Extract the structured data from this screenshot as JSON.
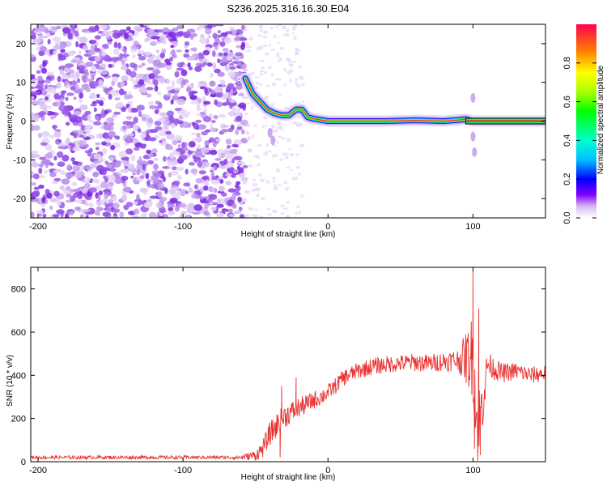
{
  "title": "S236.2025.316.16.30.E04",
  "chart_data": [
    {
      "type": "heatmap",
      "name": "spectrogram",
      "xlabel": "Height of straight line (km)",
      "ylabel": "Frequency (Hz)",
      "xlim": [
        -205,
        150
      ],
      "ylim": [
        -25,
        25
      ],
      "xticks": [
        -200,
        -100,
        0,
        100
      ],
      "yticks": [
        -20,
        -10,
        0,
        10,
        20
      ],
      "colorbar": {
        "label": "Normalized spectral amplitude",
        "range": [
          0,
          1
        ],
        "ticks": [
          0.0,
          0.2,
          0.4,
          0.6,
          0.8
        ]
      },
      "noise_region_x": [
        -205,
        -57
      ],
      "signal_track": {
        "x": [
          -57,
          -52,
          -47,
          -42,
          -37,
          -32,
          -27,
          -22,
          -18,
          -14,
          -10,
          -5,
          0,
          10,
          20,
          40,
          60,
          80,
          90,
          95,
          100,
          150
        ],
        "freq": [
          11,
          7,
          5,
          3,
          2,
          1.5,
          1.5,
          3,
          3,
          1,
          0.6,
          0.3,
          0,
          0,
          0,
          0,
          0.2,
          0,
          0.3,
          0.5,
          0,
          0
        ]
      }
    },
    {
      "type": "line",
      "name": "snr",
      "xlabel": "Height of straight line (km)",
      "ylabel": "SNR (10 * v/v)",
      "xlim": [
        -205,
        150
      ],
      "ylim": [
        0,
        900
      ],
      "xticks": [
        -200,
        -100,
        0,
        100
      ],
      "yticks": [
        0,
        200,
        400,
        600,
        800
      ],
      "series": [
        {
          "name": "SNR",
          "color": "#e8312f",
          "x": [
            -205,
            -190,
            -170,
            -150,
            -130,
            -110,
            -90,
            -70,
            -60,
            -50,
            -45,
            -40,
            -35,
            -30,
            -25,
            -20,
            -15,
            -10,
            -5,
            0,
            5,
            10,
            20,
            30,
            40,
            50,
            60,
            70,
            80,
            90,
            95,
            100,
            103,
            106,
            110,
            120,
            130,
            140,
            150
          ],
          "values": [
            20,
            20,
            20,
            20,
            20,
            20,
            20,
            20,
            20,
            30,
            60,
            130,
            170,
            210,
            230,
            250,
            265,
            285,
            300,
            320,
            350,
            385,
            420,
            440,
            450,
            455,
            460,
            455,
            465,
            470,
            480,
            490,
            150,
            250,
            450,
            410,
            420,
            400,
            410
          ],
          "noise": [
            8,
            8,
            8,
            8,
            8,
            8,
            8,
            8,
            10,
            25,
            40,
            55,
            60,
            55,
            50,
            48,
            45,
            42,
            40,
            38,
            38,
            38,
            38,
            40,
            40,
            40,
            42,
            42,
            45,
            55,
            120,
            200,
            200,
            150,
            60,
            45,
            42,
            40,
            40
          ],
          "spikes": [
            {
              "x": 100,
              "y": 890
            },
            {
              "x": 101,
              "y": 60
            },
            {
              "x": 104,
              "y": 710
            },
            {
              "x": 105,
              "y": 30
            },
            {
              "x": -32,
              "y": 350
            },
            {
              "x": -33,
              "y": 20
            },
            {
              "x": -22,
              "y": 390
            }
          ]
        }
      ]
    }
  ]
}
